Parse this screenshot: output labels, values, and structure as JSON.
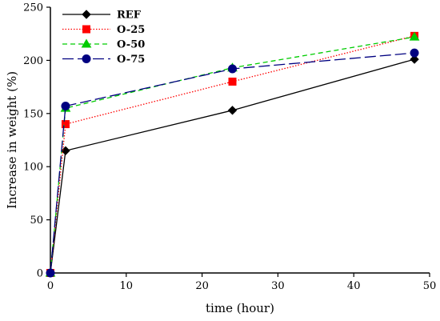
{
  "chart_data": {
    "type": "line",
    "xlabel": "time (hour)",
    "ylabel": "Increase in weight (%)",
    "xlim": [
      0,
      50
    ],
    "ylim": [
      0,
      250
    ],
    "xticks": [
      0,
      10,
      20,
      30,
      40,
      50
    ],
    "yticks": [
      0,
      50,
      100,
      150,
      200,
      250
    ],
    "grid": false,
    "legend_position": "top-left",
    "x": [
      0,
      2,
      24,
      48
    ],
    "series": [
      {
        "name": "REF",
        "values": [
          0,
          115,
          153,
          201
        ],
        "color": "#000000",
        "dash": "solid",
        "marker": "diamond"
      },
      {
        "name": "O-25",
        "values": [
          0,
          140,
          180,
          223
        ],
        "color": "#ff0000",
        "dash": "dotted",
        "marker": "square"
      },
      {
        "name": "O-50",
        "values": [
          0,
          155,
          193,
          222
        ],
        "color": "#00cc00",
        "dash": "dashed",
        "marker": "triangle"
      },
      {
        "name": "O-75",
        "values": [
          0,
          157,
          192,
          207
        ],
        "color": "#000080",
        "dash": "longdash",
        "marker": "circle"
      }
    ]
  }
}
